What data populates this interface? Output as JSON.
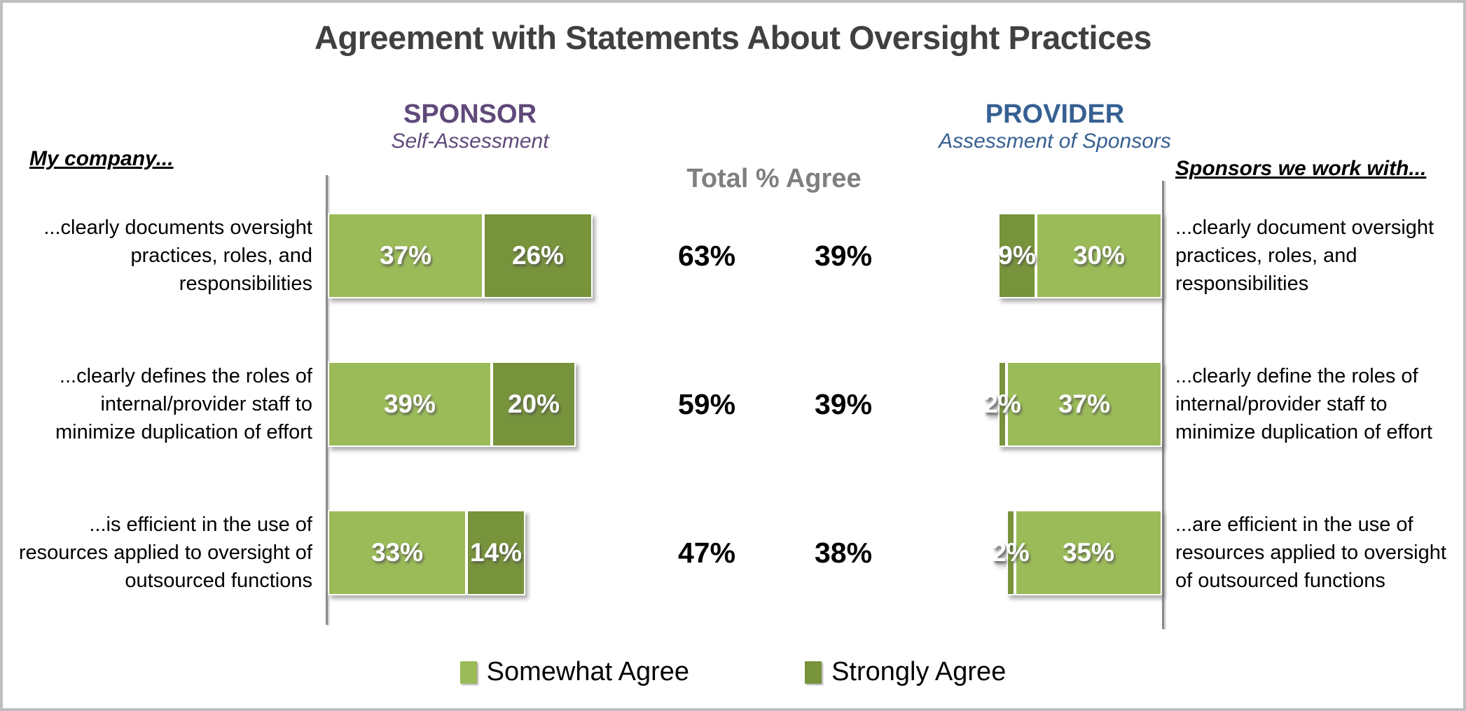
{
  "title": "Agreement with Statements About Oversight Practices",
  "columns": {
    "left_header": "My company...",
    "sponsor_title": "SPONSOR",
    "sponsor_subtitle": "Self-Assessment",
    "total_header": "Total % Agree",
    "provider_title": "PROVIDER",
    "provider_subtitle": "Assessment of Sponsors",
    "right_header": "Sponsors we work with..."
  },
  "colors": {
    "somewhat_green": "#9BBB59",
    "strongly_green": "#77933C",
    "sponsor_purple": "#5F497A",
    "provider_blue": "#376092",
    "total_gray": "#7F7F7F",
    "title_gray": "#404040",
    "axis_gray": "#8A8A8A",
    "frame_gray": "#BFBFBF"
  },
  "legend": [
    {
      "label": "Somewhat Agree",
      "color": "#9BBB59"
    },
    {
      "label": "Strongly Agree",
      "color": "#77933C"
    }
  ],
  "rows": [
    {
      "sponsor_label": "...clearly documents oversight practices, roles, and responsibilities",
      "provider_label": "...clearly document oversight practices, roles, and responsibilities",
      "sponsor": {
        "somewhat_pct": 37,
        "somewhat_text": "37%",
        "strongly_pct": 26,
        "strongly_text": "26%"
      },
      "totals": {
        "sponsor_text": "63%",
        "provider_text": "39%"
      },
      "provider": {
        "strongly_pct": 9,
        "strongly_text": "9%",
        "somewhat_pct": 30,
        "somewhat_text": "30%"
      }
    },
    {
      "sponsor_label": "...clearly defines the roles of internal/provider staff to minimize duplication of effort",
      "provider_label": "...clearly define the roles of internal/provider staff to minimize duplication of effort",
      "sponsor": {
        "somewhat_pct": 39,
        "somewhat_text": "39%",
        "strongly_pct": 20,
        "strongly_text": "20%"
      },
      "totals": {
        "sponsor_text": "59%",
        "provider_text": "39%"
      },
      "provider": {
        "strongly_pct": 2,
        "strongly_text": "2%",
        "somewhat_pct": 37,
        "somewhat_text": "37%"
      }
    },
    {
      "sponsor_label": "...is efficient in the use of resources applied to oversight of outsourced functions",
      "provider_label": "...are efficient in the use of resources applied to oversight of outsourced functions",
      "sponsor": {
        "somewhat_pct": 33,
        "somewhat_text": "33%",
        "strongly_pct": 14,
        "strongly_text": "14%"
      },
      "totals": {
        "sponsor_text": "47%",
        "provider_text": "38%"
      },
      "provider": {
        "strongly_pct": 2,
        "strongly_text": "2%",
        "somewhat_pct": 35,
        "somewhat_text": "35%"
      }
    }
  ],
  "chart_data": {
    "type": "bar",
    "orientation": "horizontal-stacked-paired",
    "title": "Agreement with Statements About Oversight Practices",
    "legend": [
      "Somewhat Agree",
      "Strongly Agree"
    ],
    "legend_position": "bottom",
    "colors": {
      "Somewhat Agree": "#9BBB59",
      "Strongly Agree": "#77933C"
    },
    "groups": [
      {
        "name": "SPONSOR Self-Assessment",
        "categories": [
          "...clearly documents oversight practices, roles, and responsibilities",
          "...clearly defines the roles of internal/provider staff to minimize duplication of effort",
          "...is efficient in the use of resources applied to oversight of outsourced functions"
        ],
        "series": [
          {
            "name": "Somewhat Agree",
            "values": [
              37,
              39,
              33
            ]
          },
          {
            "name": "Strongly Agree",
            "values": [
              26,
              20,
              14
            ]
          }
        ],
        "total_percent_agree": [
          63,
          59,
          47
        ],
        "bar_direction": "left-to-right"
      },
      {
        "name": "PROVIDER Assessment of Sponsors",
        "categories": [
          "...clearly document oversight practices, roles, and responsibilities",
          "...clearly define the roles of internal/provider staff to minimize duplication of effort",
          "...are efficient in the use of resources applied to oversight of outsourced functions"
        ],
        "series": [
          {
            "name": "Somewhat Agree",
            "values": [
              30,
              37,
              35
            ]
          },
          {
            "name": "Strongly Agree",
            "values": [
              9,
              2,
              2
            ]
          }
        ],
        "total_percent_agree": [
          39,
          39,
          38
        ],
        "bar_direction": "right-to-left"
      }
    ]
  }
}
